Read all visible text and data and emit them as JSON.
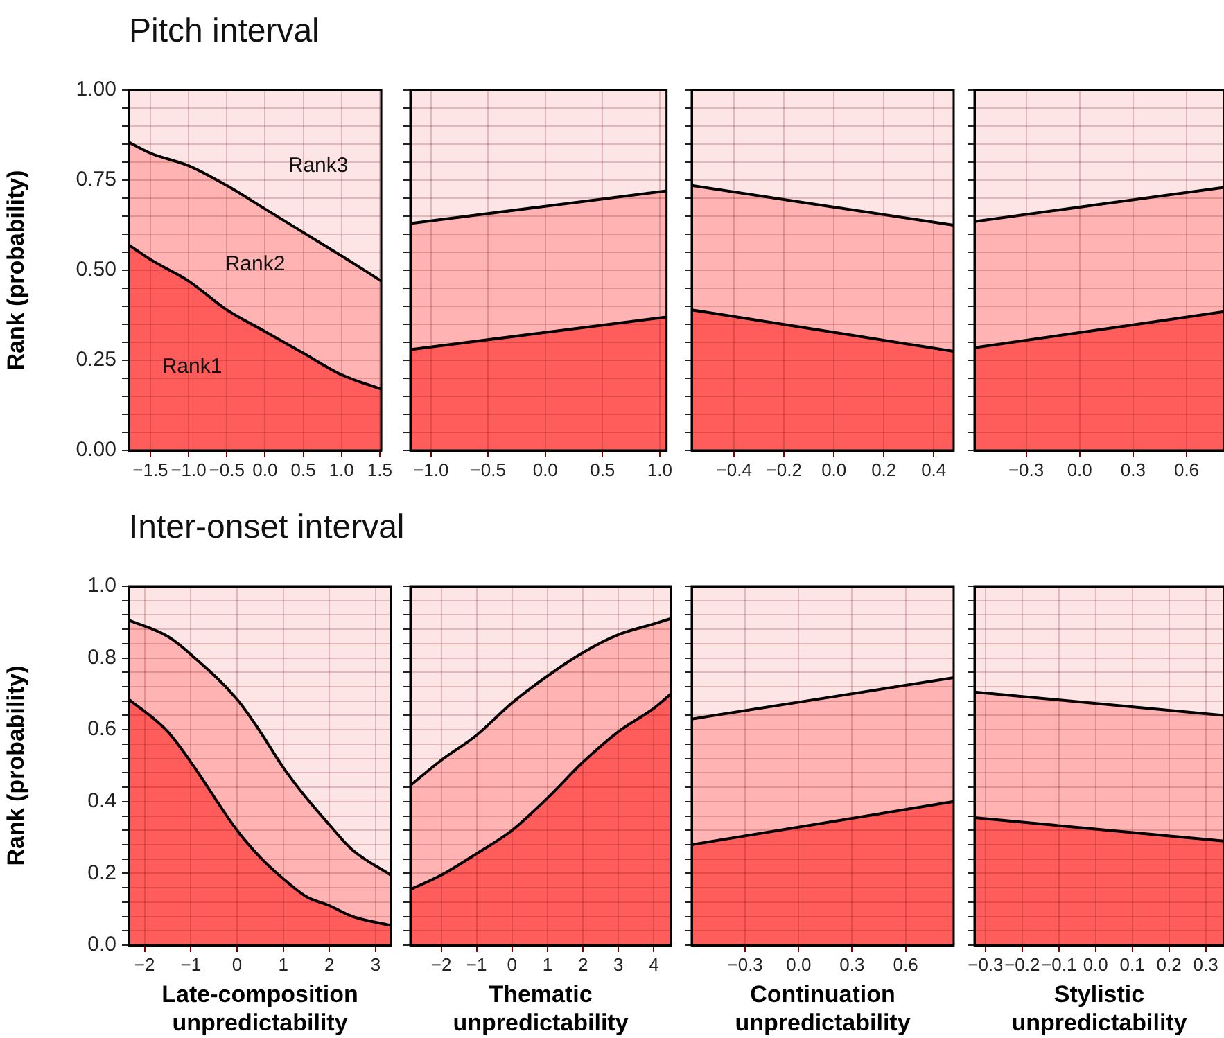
{
  "chart_data": [
    {
      "type": "area",
      "title": "Pitch interval",
      "ylabel": "Rank (probability)",
      "stacked": true,
      "grid": true,
      "xlim": [
        -1.78,
        1.52
      ],
      "ylim": [
        0,
        1
      ],
      "xticks": [
        {
          "value": -1.5,
          "label": "−1.5"
        },
        {
          "value": -1.0,
          "label": "−1.0"
        },
        {
          "value": -0.5,
          "label": "−0.5"
        },
        {
          "value": 0,
          "label": "0.0"
        },
        0.5,
        {
          "value": 1.0,
          "label": "1.0"
        },
        1.5
      ],
      "yticks": [
        {
          "value": 0,
          "label": "0.00"
        },
        {
          "value": 0.05,
          "label": null
        },
        {
          "value": 0.1,
          "label": null
        },
        {
          "value": 0.15,
          "label": null
        },
        {
          "value": 0.2,
          "label": null
        },
        {
          "value": 0.25,
          "label": "0.25"
        },
        {
          "value": 0.3,
          "label": null
        },
        {
          "value": 0.35,
          "label": null
        },
        {
          "value": 0.4,
          "label": null
        },
        {
          "value": 0.45,
          "label": null
        },
        {
          "value": 0.5,
          "label": "0.50"
        },
        {
          "value": 0.55,
          "label": null
        },
        {
          "value": 0.6,
          "label": null
        },
        {
          "value": 0.65,
          "label": null
        },
        {
          "value": 0.7,
          "label": null
        },
        {
          "value": 0.75,
          "label": "0.75"
        },
        {
          "value": 0.8,
          "label": null
        },
        {
          "value": 0.85,
          "label": null
        },
        {
          "value": 0.9,
          "label": null
        },
        {
          "value": 0.95,
          "label": null
        },
        {
          "value": 1,
          "label": "1.00"
        }
      ],
      "x": [
        -1.78,
        -1.5,
        -1.0,
        -0.5,
        0,
        0.5,
        1.0,
        1.52
      ],
      "series": [
        {
          "name": "Rank1",
          "color": "#ff5c5c",
          "values": [
            0.57,
            0.53,
            0.47,
            0.39,
            0.33,
            0.27,
            0.21,
            0.17
          ]
        },
        {
          "name": "Rank2",
          "color": "#ffb3b3",
          "values": [
            0.285,
            0.295,
            0.32,
            0.345,
            0.34,
            0.335,
            0.33,
            0.3
          ]
        },
        {
          "name": "Rank3",
          "color": "#fee5e5",
          "values": [
            0.145,
            0.175,
            0.21,
            0.265,
            0.33,
            0.395,
            0.46,
            0.53
          ]
        }
      ]
    },
    {
      "type": "area",
      "stacked": true,
      "grid": true,
      "tick_labels": "x",
      "xlim": [
        -1.18,
        1.06
      ],
      "ylim": [
        0,
        1
      ],
      "xticks": [
        {
          "value": -1.0,
          "label": "−1.0"
        },
        {
          "value": -0.5,
          "label": "−0.5"
        },
        {
          "value": 0,
          "label": "0.0"
        },
        0.5,
        {
          "value": 1.0,
          "label": "1.0"
        }
      ],
      "yticks": [
        {
          "value": 0,
          "label": null
        },
        {
          "value": 0.05,
          "label": null
        },
        {
          "value": 0.1,
          "label": null
        },
        {
          "value": 0.15,
          "label": null
        },
        {
          "value": 0.2,
          "label": null
        },
        {
          "value": 0.25,
          "label": null
        },
        {
          "value": 0.3,
          "label": null
        },
        {
          "value": 0.35,
          "label": null
        },
        {
          "value": 0.4,
          "label": null
        },
        {
          "value": 0.45,
          "label": null
        },
        {
          "value": 0.5,
          "label": null
        },
        {
          "value": 0.55,
          "label": null
        },
        {
          "value": 0.6,
          "label": null
        },
        {
          "value": 0.65,
          "label": null
        },
        {
          "value": 0.7,
          "label": null
        },
        {
          "value": 0.75,
          "label": null
        },
        {
          "value": 0.8,
          "label": null
        },
        {
          "value": 0.85,
          "label": null
        },
        {
          "value": 0.9,
          "label": null
        },
        {
          "value": 0.95,
          "label": null
        },
        {
          "value": 1,
          "label": null
        }
      ],
      "x": [
        -1.18,
        1.06
      ],
      "series": [
        {
          "color": "#ff5c5c",
          "values": [
            0.28,
            0.37
          ]
        },
        {
          "color": "#ffb3b3",
          "values": [
            0.35,
            0.35
          ]
        },
        {
          "color": "#fee5e5",
          "values": [
            0.37,
            0.28
          ]
        }
      ]
    },
    {
      "type": "area",
      "stacked": true,
      "grid": true,
      "tick_labels": "x",
      "xlim": [
        -0.57,
        0.48
      ],
      "ylim": [
        0,
        1
      ],
      "xticks": [
        {
          "value": -0.4,
          "label": "−0.4"
        },
        {
          "value": -0.2,
          "label": "−0.2"
        },
        {
          "value": 0,
          "label": "0.0"
        },
        0.2,
        0.4
      ],
      "yticks": [
        {
          "value": 0,
          "label": null
        },
        {
          "value": 0.05,
          "label": null
        },
        {
          "value": 0.1,
          "label": null
        },
        {
          "value": 0.15,
          "label": null
        },
        {
          "value": 0.2,
          "label": null
        },
        {
          "value": 0.25,
          "label": null
        },
        {
          "value": 0.3,
          "label": null
        },
        {
          "value": 0.35,
          "label": null
        },
        {
          "value": 0.4,
          "label": null
        },
        {
          "value": 0.45,
          "label": null
        },
        {
          "value": 0.5,
          "label": null
        },
        {
          "value": 0.55,
          "label": null
        },
        {
          "value": 0.6,
          "label": null
        },
        {
          "value": 0.65,
          "label": null
        },
        {
          "value": 0.7,
          "label": null
        },
        {
          "value": 0.75,
          "label": null
        },
        {
          "value": 0.8,
          "label": null
        },
        {
          "value": 0.85,
          "label": null
        },
        {
          "value": 0.9,
          "label": null
        },
        {
          "value": 0.95,
          "label": null
        },
        {
          "value": 1,
          "label": null
        }
      ],
      "x": [
        -0.57,
        0.48
      ],
      "series": [
        {
          "color": "#ff5c5c",
          "values": [
            0.39,
            0.275
          ]
        },
        {
          "color": "#ffb3b3",
          "values": [
            0.345,
            0.35
          ]
        },
        {
          "color": "#fee5e5",
          "values": [
            0.265,
            0.375
          ]
        }
      ]
    },
    {
      "type": "area",
      "stacked": true,
      "grid": true,
      "tick_labels": "x",
      "xlim": [
        -0.59,
        0.81
      ],
      "ylim": [
        0,
        1
      ],
      "xticks": [
        {
          "value": -0.3,
          "label": "−0.3"
        },
        {
          "value": 0,
          "label": "0.0"
        },
        0.3,
        0.6
      ],
      "yticks": [
        {
          "value": 0,
          "label": null
        },
        {
          "value": 0.05,
          "label": null
        },
        {
          "value": 0.1,
          "label": null
        },
        {
          "value": 0.15,
          "label": null
        },
        {
          "value": 0.2,
          "label": null
        },
        {
          "value": 0.25,
          "label": null
        },
        {
          "value": 0.3,
          "label": null
        },
        {
          "value": 0.35,
          "label": null
        },
        {
          "value": 0.4,
          "label": null
        },
        {
          "value": 0.45,
          "label": null
        },
        {
          "value": 0.5,
          "label": null
        },
        {
          "value": 0.55,
          "label": null
        },
        {
          "value": 0.6,
          "label": null
        },
        {
          "value": 0.65,
          "label": null
        },
        {
          "value": 0.7,
          "label": null
        },
        {
          "value": 0.75,
          "label": null
        },
        {
          "value": 0.8,
          "label": null
        },
        {
          "value": 0.85,
          "label": null
        },
        {
          "value": 0.9,
          "label": null
        },
        {
          "value": 0.95,
          "label": null
        },
        {
          "value": 1,
          "label": null
        }
      ],
      "x": [
        -0.59,
        0.81
      ],
      "series": [
        {
          "color": "#ff5c5c",
          "values": [
            0.285,
            0.385
          ]
        },
        {
          "color": "#ffb3b3",
          "values": [
            0.35,
            0.345
          ]
        },
        {
          "color": "#fee5e5",
          "values": [
            0.365,
            0.27
          ]
        }
      ]
    },
    {
      "type": "area",
      "title": "Inter-onset interval",
      "ylabel": "Rank (probability)",
      "xlabel": "Late-composition unpredictability",
      "stacked": true,
      "grid": true,
      "xlim": [
        -2.34,
        3.33
      ],
      "ylim": [
        0,
        1
      ],
      "xticks": [
        {
          "value": -2,
          "label": "−2"
        },
        {
          "value": -1,
          "label": "−1"
        },
        0,
        1,
        2,
        3
      ],
      "yticks": [
        {
          "value": 0,
          "label": "0.0"
        },
        {
          "value": 0.04,
          "label": null
        },
        {
          "value": 0.08,
          "label": null
        },
        {
          "value": 0.12,
          "label": null
        },
        {
          "value": 0.16,
          "label": null
        },
        0.2,
        {
          "value": 0.24,
          "label": null
        },
        {
          "value": 0.28,
          "label": null
        },
        {
          "value": 0.32,
          "label": null
        },
        {
          "value": 0.36,
          "label": null
        },
        0.4,
        {
          "value": 0.44,
          "label": null
        },
        {
          "value": 0.48,
          "label": null
        },
        {
          "value": 0.52,
          "label": null
        },
        {
          "value": 0.56,
          "label": null
        },
        0.6,
        {
          "value": 0.64,
          "label": null
        },
        {
          "value": 0.68,
          "label": null
        },
        {
          "value": 0.72,
          "label": null
        },
        {
          "value": 0.76,
          "label": null
        },
        0.8,
        {
          "value": 0.84,
          "label": null
        },
        {
          "value": 0.88,
          "label": null
        },
        {
          "value": 0.92,
          "label": null
        },
        {
          "value": 0.96,
          "label": null
        },
        {
          "value": 1,
          "label": "1.0"
        }
      ],
      "x": [
        -2.34,
        -1.5,
        -1,
        0,
        0.5,
        1,
        1.5,
        2,
        2.5,
        3.33
      ],
      "series": [
        {
          "color": "#ff5c5c",
          "values": [
            0.685,
            0.595,
            0.51,
            0.32,
            0.245,
            0.185,
            0.135,
            0.11,
            0.08,
            0.055
          ]
        },
        {
          "color": "#ffb3b3",
          "values": [
            0.22,
            0.265,
            0.3,
            0.365,
            0.35,
            0.31,
            0.275,
            0.225,
            0.185,
            0.14
          ]
        },
        {
          "color": "#fee5e5",
          "values": [
            0.095,
            0.14,
            0.19,
            0.315,
            0.405,
            0.505,
            0.59,
            0.665,
            0.735,
            0.805
          ]
        }
      ]
    },
    {
      "type": "area",
      "xlabel": "Thematic unpredictability",
      "stacked": true,
      "grid": true,
      "tick_labels": "x",
      "xlim": [
        -2.87,
        4.48
      ],
      "ylim": [
        0,
        1
      ],
      "xticks": [
        {
          "value": -2,
          "label": "−2"
        },
        {
          "value": -1,
          "label": "−1"
        },
        0,
        1,
        2,
        3,
        4
      ],
      "yticks": [
        {
          "value": 0,
          "label": null
        },
        {
          "value": 0.04,
          "label": null
        },
        {
          "value": 0.08,
          "label": null
        },
        {
          "value": 0.12,
          "label": null
        },
        {
          "value": 0.16,
          "label": null
        },
        {
          "value": 0.2,
          "label": null
        },
        {
          "value": 0.24,
          "label": null
        },
        {
          "value": 0.28,
          "label": null
        },
        {
          "value": 0.32,
          "label": null
        },
        {
          "value": 0.36,
          "label": null
        },
        {
          "value": 0.4,
          "label": null
        },
        {
          "value": 0.44,
          "label": null
        },
        {
          "value": 0.48,
          "label": null
        },
        {
          "value": 0.52,
          "label": null
        },
        {
          "value": 0.56,
          "label": null
        },
        {
          "value": 0.6,
          "label": null
        },
        {
          "value": 0.64,
          "label": null
        },
        {
          "value": 0.68,
          "label": null
        },
        {
          "value": 0.72,
          "label": null
        },
        {
          "value": 0.76,
          "label": null
        },
        {
          "value": 0.8,
          "label": null
        },
        {
          "value": 0.84,
          "label": null
        },
        {
          "value": 0.88,
          "label": null
        },
        {
          "value": 0.92,
          "label": null
        },
        {
          "value": 0.96,
          "label": null
        },
        {
          "value": 1,
          "label": null
        }
      ],
      "x": [
        -2.87,
        -2,
        -1,
        0,
        1,
        2,
        3,
        4,
        4.48
      ],
      "series": [
        {
          "color": "#ff5c5c",
          "values": [
            0.155,
            0.195,
            0.255,
            0.32,
            0.41,
            0.51,
            0.595,
            0.66,
            0.7
          ]
        },
        {
          "color": "#ffb3b3",
          "values": [
            0.29,
            0.32,
            0.33,
            0.355,
            0.34,
            0.305,
            0.27,
            0.235,
            0.21
          ]
        },
        {
          "color": "#fee5e5",
          "values": [
            0.555,
            0.485,
            0.415,
            0.325,
            0.25,
            0.185,
            0.135,
            0.105,
            0.09
          ]
        }
      ]
    },
    {
      "type": "area",
      "xlabel": "Continuation unpredictability",
      "stacked": true,
      "grid": true,
      "tick_labels": "x",
      "xlim": [
        -0.6,
        0.87
      ],
      "ylim": [
        0,
        1
      ],
      "xticks": [
        {
          "value": -0.3,
          "label": "−0.3"
        },
        {
          "value": 0,
          "label": "0.0"
        },
        0.3,
        0.6
      ],
      "yticks": [
        {
          "value": 0,
          "label": null
        },
        {
          "value": 0.04,
          "label": null
        },
        {
          "value": 0.08,
          "label": null
        },
        {
          "value": 0.12,
          "label": null
        },
        {
          "value": 0.16,
          "label": null
        },
        {
          "value": 0.2,
          "label": null
        },
        {
          "value": 0.24,
          "label": null
        },
        {
          "value": 0.28,
          "label": null
        },
        {
          "value": 0.32,
          "label": null
        },
        {
          "value": 0.36,
          "label": null
        },
        {
          "value": 0.4,
          "label": null
        },
        {
          "value": 0.44,
          "label": null
        },
        {
          "value": 0.48,
          "label": null
        },
        {
          "value": 0.52,
          "label": null
        },
        {
          "value": 0.56,
          "label": null
        },
        {
          "value": 0.6,
          "label": null
        },
        {
          "value": 0.64,
          "label": null
        },
        {
          "value": 0.68,
          "label": null
        },
        {
          "value": 0.72,
          "label": null
        },
        {
          "value": 0.76,
          "label": null
        },
        {
          "value": 0.8,
          "label": null
        },
        {
          "value": 0.84,
          "label": null
        },
        {
          "value": 0.88,
          "label": null
        },
        {
          "value": 0.92,
          "label": null
        },
        {
          "value": 0.96,
          "label": null
        },
        {
          "value": 1,
          "label": null
        }
      ],
      "x": [
        -0.6,
        0.87
      ],
      "series": [
        {
          "color": "#ff5c5c",
          "values": [
            0.28,
            0.4
          ]
        },
        {
          "color": "#ffb3b3",
          "values": [
            0.35,
            0.345
          ]
        },
        {
          "color": "#fee5e5",
          "values": [
            0.37,
            0.255
          ]
        }
      ]
    },
    {
      "type": "area",
      "xlabel": "Stylistic unpredictability",
      "stacked": true,
      "grid": true,
      "tick_labels": "x",
      "xlim": [
        -0.33,
        0.35
      ],
      "ylim": [
        0,
        1
      ],
      "xticks": [
        {
          "value": -0.3,
          "label": "−0.3"
        },
        {
          "value": -0.2,
          "label": "−0.2"
        },
        {
          "value": -0.1,
          "label": "−0.1"
        },
        {
          "value": 0,
          "label": "0.0"
        },
        0.1,
        0.2,
        0.3
      ],
      "yticks": [
        {
          "value": 0,
          "label": null
        },
        {
          "value": 0.04,
          "label": null
        },
        {
          "value": 0.08,
          "label": null
        },
        {
          "value": 0.12,
          "label": null
        },
        {
          "value": 0.16,
          "label": null
        },
        {
          "value": 0.2,
          "label": null
        },
        {
          "value": 0.24,
          "label": null
        },
        {
          "value": 0.28,
          "label": null
        },
        {
          "value": 0.32,
          "label": null
        },
        {
          "value": 0.36,
          "label": null
        },
        {
          "value": 0.4,
          "label": null
        },
        {
          "value": 0.44,
          "label": null
        },
        {
          "value": 0.48,
          "label": null
        },
        {
          "value": 0.52,
          "label": null
        },
        {
          "value": 0.56,
          "label": null
        },
        {
          "value": 0.6,
          "label": null
        },
        {
          "value": 0.64,
          "label": null
        },
        {
          "value": 0.68,
          "label": null
        },
        {
          "value": 0.72,
          "label": null
        },
        {
          "value": 0.76,
          "label": null
        },
        {
          "value": 0.8,
          "label": null
        },
        {
          "value": 0.84,
          "label": null
        },
        {
          "value": 0.88,
          "label": null
        },
        {
          "value": 0.92,
          "label": null
        },
        {
          "value": 0.96,
          "label": null
        },
        {
          "value": 1,
          "label": null
        }
      ],
      "x": [
        -0.33,
        0.35
      ],
      "series": [
        {
          "color": "#ff5c5c",
          "values": [
            0.355,
            0.29
          ]
        },
        {
          "color": "#ffb3b3",
          "values": [
            0.35,
            0.35
          ]
        },
        {
          "color": "#fee5e5",
          "values": [
            0.295,
            0.36
          ]
        }
      ]
    }
  ]
}
